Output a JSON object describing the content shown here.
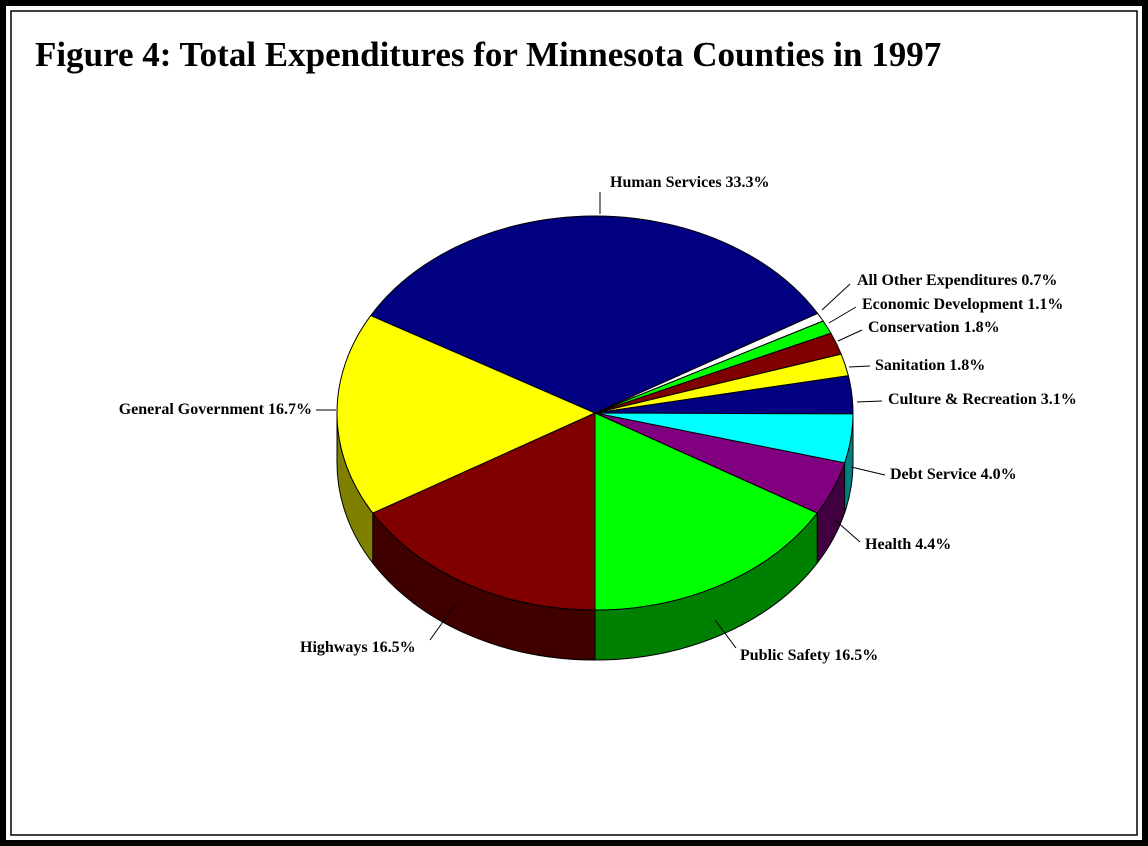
{
  "chart_data": {
    "type": "pie",
    "title": "Figure 4: Total Expenditures for Minnesota Counties in 1997",
    "categories": [
      "Human Services",
      "All Other Expenditures",
      "Economic Development",
      "Conservation",
      "Sanitation",
      "Culture & Recreation",
      "Debt Service",
      "Health",
      "Public Safety",
      "Highways",
      "General Government"
    ],
    "values": [
      33.3,
      0.7,
      1.1,
      1.8,
      1.8,
      3.1,
      4.0,
      4.4,
      16.5,
      16.5,
      16.7
    ],
    "value_labels": [
      "33.3%",
      "0.7%",
      "1.1%",
      "1.8%",
      "1.8%",
      "3.1%",
      "4.0%",
      "4.4%",
      "16.5%",
      "16.5%",
      "16.7%"
    ],
    "colors": [
      "#000080",
      "#ffffff",
      "#00ff00",
      "#800000",
      "#ffff00",
      "#000080",
      "#00ffff",
      "#800080",
      "#00ff00",
      "#800000",
      "#ffff00"
    ]
  }
}
